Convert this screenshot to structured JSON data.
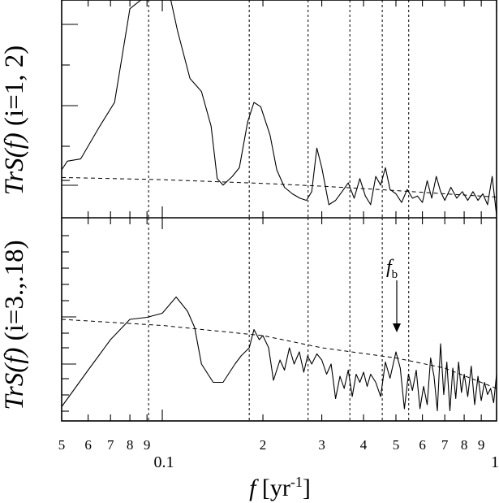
{
  "figure": {
    "xlabel_italic": "f",
    "xlabel_unit": " [yr",
    "xlabel_exp": "-1",
    "xlabel_close": "]",
    "top_ylabel_italic": "TrS(f)",
    "top_ylabel_rest": " (i=1, 2)",
    "bottom_ylabel_italic": "TrS(f)",
    "bottom_ylabel_rest": " (i=3.,.18)",
    "annotation_base": "f",
    "annotation_sub": "b"
  },
  "chart_data": [
    {
      "type": "line",
      "panel": "top",
      "xscale": "log",
      "xlim": [
        0.05,
        1.0
      ],
      "ylim": [
        0,
        10
      ],
      "x_tick_labels": [
        {
          "x": 0.05,
          "label": "5",
          "major": false
        },
        {
          "x": 0.06,
          "label": "6",
          "major": false
        },
        {
          "x": 0.07,
          "label": "7",
          "major": false
        },
        {
          "x": 0.08,
          "label": "8",
          "major": false
        },
        {
          "x": 0.09,
          "label": "9",
          "major": false
        },
        {
          "x": 0.1,
          "label": "0.1",
          "major": true
        },
        {
          "x": 0.2,
          "label": "2",
          "major": false
        },
        {
          "x": 0.3,
          "label": "3",
          "major": false
        },
        {
          "x": 0.4,
          "label": "4",
          "major": false
        },
        {
          "x": 0.5,
          "label": "5",
          "major": false
        },
        {
          "x": 0.6,
          "label": "6",
          "major": false
        },
        {
          "x": 0.7,
          "label": "7",
          "major": false
        },
        {
          "x": 0.8,
          "label": "8",
          "major": false
        },
        {
          "x": 0.9,
          "label": "9",
          "major": false
        },
        {
          "x": 1.0,
          "label": "1",
          "major": true
        }
      ],
      "reference_frequencies": [
        0.091,
        0.182,
        0.273,
        0.364,
        0.455,
        0.546
      ],
      "series": [
        {
          "style": "solid",
          "points": [
            [
              0.05,
              2.2
            ],
            [
              0.052,
              2.6
            ],
            [
              0.057,
              2.7
            ],
            [
              0.065,
              4.2
            ],
            [
              0.072,
              5.3
            ],
            [
              0.08,
              9.6
            ],
            [
              0.088,
              10.1
            ],
            [
              0.095,
              10.7
            ],
            [
              0.104,
              10.6
            ],
            [
              0.111,
              8.6
            ],
            [
              0.121,
              6.4
            ],
            [
              0.131,
              5.8
            ],
            [
              0.14,
              4.2
            ],
            [
              0.146,
              1.8
            ],
            [
              0.152,
              1.5
            ],
            [
              0.162,
              1.9
            ],
            [
              0.17,
              2.3
            ],
            [
              0.18,
              4.4
            ],
            [
              0.188,
              5.3
            ],
            [
              0.197,
              5.1
            ],
            [
              0.21,
              3.8
            ],
            [
              0.22,
              2.2
            ],
            [
              0.232,
              1.4
            ],
            [
              0.245,
              1.1
            ],
            [
              0.258,
              0.9
            ],
            [
              0.27,
              0.8
            ],
            [
              0.28,
              1.2
            ],
            [
              0.29,
              3.2
            ],
            [
              0.3,
              2.3
            ],
            [
              0.315,
              0.6
            ],
            [
              0.33,
              0.8
            ],
            [
              0.345,
              1.2
            ],
            [
              0.36,
              1.6
            ],
            [
              0.375,
              0.9
            ],
            [
              0.39,
              1.8
            ],
            [
              0.405,
              1.0
            ],
            [
              0.42,
              0.6
            ],
            [
              0.435,
              1.9
            ],
            [
              0.45,
              1.5
            ],
            [
              0.465,
              2.3
            ],
            [
              0.48,
              1.3
            ],
            [
              0.5,
              1.1
            ],
            [
              0.52,
              0.7
            ],
            [
              0.54,
              1.3
            ],
            [
              0.56,
              0.9
            ],
            [
              0.58,
              1.0
            ],
            [
              0.6,
              0.7
            ],
            [
              0.62,
              1.7
            ],
            [
              0.64,
              0.9
            ],
            [
              0.66,
              1.9
            ],
            [
              0.68,
              1.2
            ],
            [
              0.7,
              0.8
            ],
            [
              0.73,
              1.4
            ],
            [
              0.76,
              0.9
            ],
            [
              0.79,
              1.2
            ],
            [
              0.82,
              0.8
            ],
            [
              0.85,
              1.2
            ],
            [
              0.88,
              0.8
            ],
            [
              0.91,
              1.1
            ],
            [
              0.94,
              0.6
            ],
            [
              0.97,
              1.9
            ],
            [
              1.0,
              0.1
            ]
          ]
        },
        {
          "style": "dashed",
          "points": [
            [
              0.05,
              1.85
            ],
            [
              0.1,
              1.75
            ],
            [
              0.2,
              1.58
            ],
            [
              0.3,
              1.45
            ],
            [
              0.5,
              1.25
            ],
            [
              0.7,
              1.1
            ],
            [
              1.0,
              0.95
            ]
          ]
        }
      ]
    },
    {
      "type": "line",
      "panel": "bottom",
      "xscale": "log",
      "xlim": [
        0.05,
        1.0
      ],
      "ylim": [
        0,
        10
      ],
      "reference_frequencies": [
        0.091,
        0.182,
        0.273,
        0.364,
        0.455,
        0.546
      ],
      "annotation": {
        "label": "fb",
        "x": 0.5
      },
      "series": [
        {
          "style": "solid",
          "points": [
            [
              0.05,
              0.7
            ],
            [
              0.06,
              2.5
            ],
            [
              0.07,
              4.0
            ],
            [
              0.08,
              5.0
            ],
            [
              0.09,
              5.1
            ],
            [
              0.1,
              5.3
            ],
            [
              0.11,
              6.1
            ],
            [
              0.119,
              5.4
            ],
            [
              0.125,
              4.6
            ],
            [
              0.131,
              2.8
            ],
            [
              0.142,
              1.9
            ],
            [
              0.152,
              1.9
            ],
            [
              0.165,
              2.8
            ],
            [
              0.172,
              3.2
            ],
            [
              0.182,
              3.6
            ],
            [
              0.188,
              4.5
            ],
            [
              0.195,
              4.0
            ],
            [
              0.2,
              4.2
            ],
            [
              0.208,
              3.6
            ],
            [
              0.215,
              2.0
            ],
            [
              0.225,
              3.0
            ],
            [
              0.232,
              2.5
            ],
            [
              0.24,
              3.6
            ],
            [
              0.248,
              2.8
            ],
            [
              0.257,
              3.4
            ],
            [
              0.265,
              2.4
            ],
            [
              0.272,
              3.2
            ],
            [
              0.28,
              2.8
            ],
            [
              0.29,
              3.3
            ],
            [
              0.3,
              3.0
            ],
            [
              0.31,
              2.3
            ],
            [
              0.32,
              2.8
            ],
            [
              0.33,
              1.1
            ],
            [
              0.34,
              2.2
            ],
            [
              0.35,
              1.6
            ],
            [
              0.36,
              2.5
            ],
            [
              0.37,
              1.2
            ],
            [
              0.38,
              2.3
            ],
            [
              0.39,
              1.9
            ],
            [
              0.4,
              2.4
            ],
            [
              0.41,
              1.7
            ],
            [
              0.42,
              2.3
            ],
            [
              0.435,
              1.9
            ],
            [
              0.45,
              1.2
            ],
            [
              0.465,
              2.9
            ],
            [
              0.48,
              2.1
            ],
            [
              0.5,
              3.4
            ],
            [
              0.515,
              2.6
            ],
            [
              0.53,
              0.6
            ],
            [
              0.545,
              2.3
            ],
            [
              0.56,
              1.5
            ],
            [
              0.575,
              2.5
            ],
            [
              0.59,
              0.6
            ],
            [
              0.605,
              1.7
            ],
            [
              0.62,
              0.8
            ],
            [
              0.635,
              3.1
            ],
            [
              0.65,
              2.2
            ],
            [
              0.665,
              0.5
            ],
            [
              0.68,
              3.8
            ],
            [
              0.695,
              1.3
            ],
            [
              0.71,
              2.9
            ],
            [
              0.725,
              0.5
            ],
            [
              0.74,
              2.6
            ],
            [
              0.755,
              1.1
            ],
            [
              0.77,
              2.9
            ],
            [
              0.785,
              1.4
            ],
            [
              0.8,
              2.3
            ],
            [
              0.82,
              1.2
            ],
            [
              0.84,
              2.7
            ],
            [
              0.86,
              0.8
            ],
            [
              0.88,
              2.2
            ],
            [
              0.9,
              1.0
            ],
            [
              0.92,
              1.9
            ],
            [
              0.94,
              1.3
            ],
            [
              0.96,
              1.6
            ],
            [
              0.98,
              0.9
            ],
            [
              1.0,
              2.3
            ]
          ]
        },
        {
          "style": "dashed",
          "points": [
            [
              0.05,
              5.0
            ],
            [
              0.1,
              4.7
            ],
            [
              0.2,
              4.2
            ],
            [
              0.3,
              3.6
            ],
            [
              0.5,
              3.1
            ],
            [
              0.7,
              2.6
            ],
            [
              1.0,
              1.6
            ]
          ]
        }
      ]
    }
  ]
}
